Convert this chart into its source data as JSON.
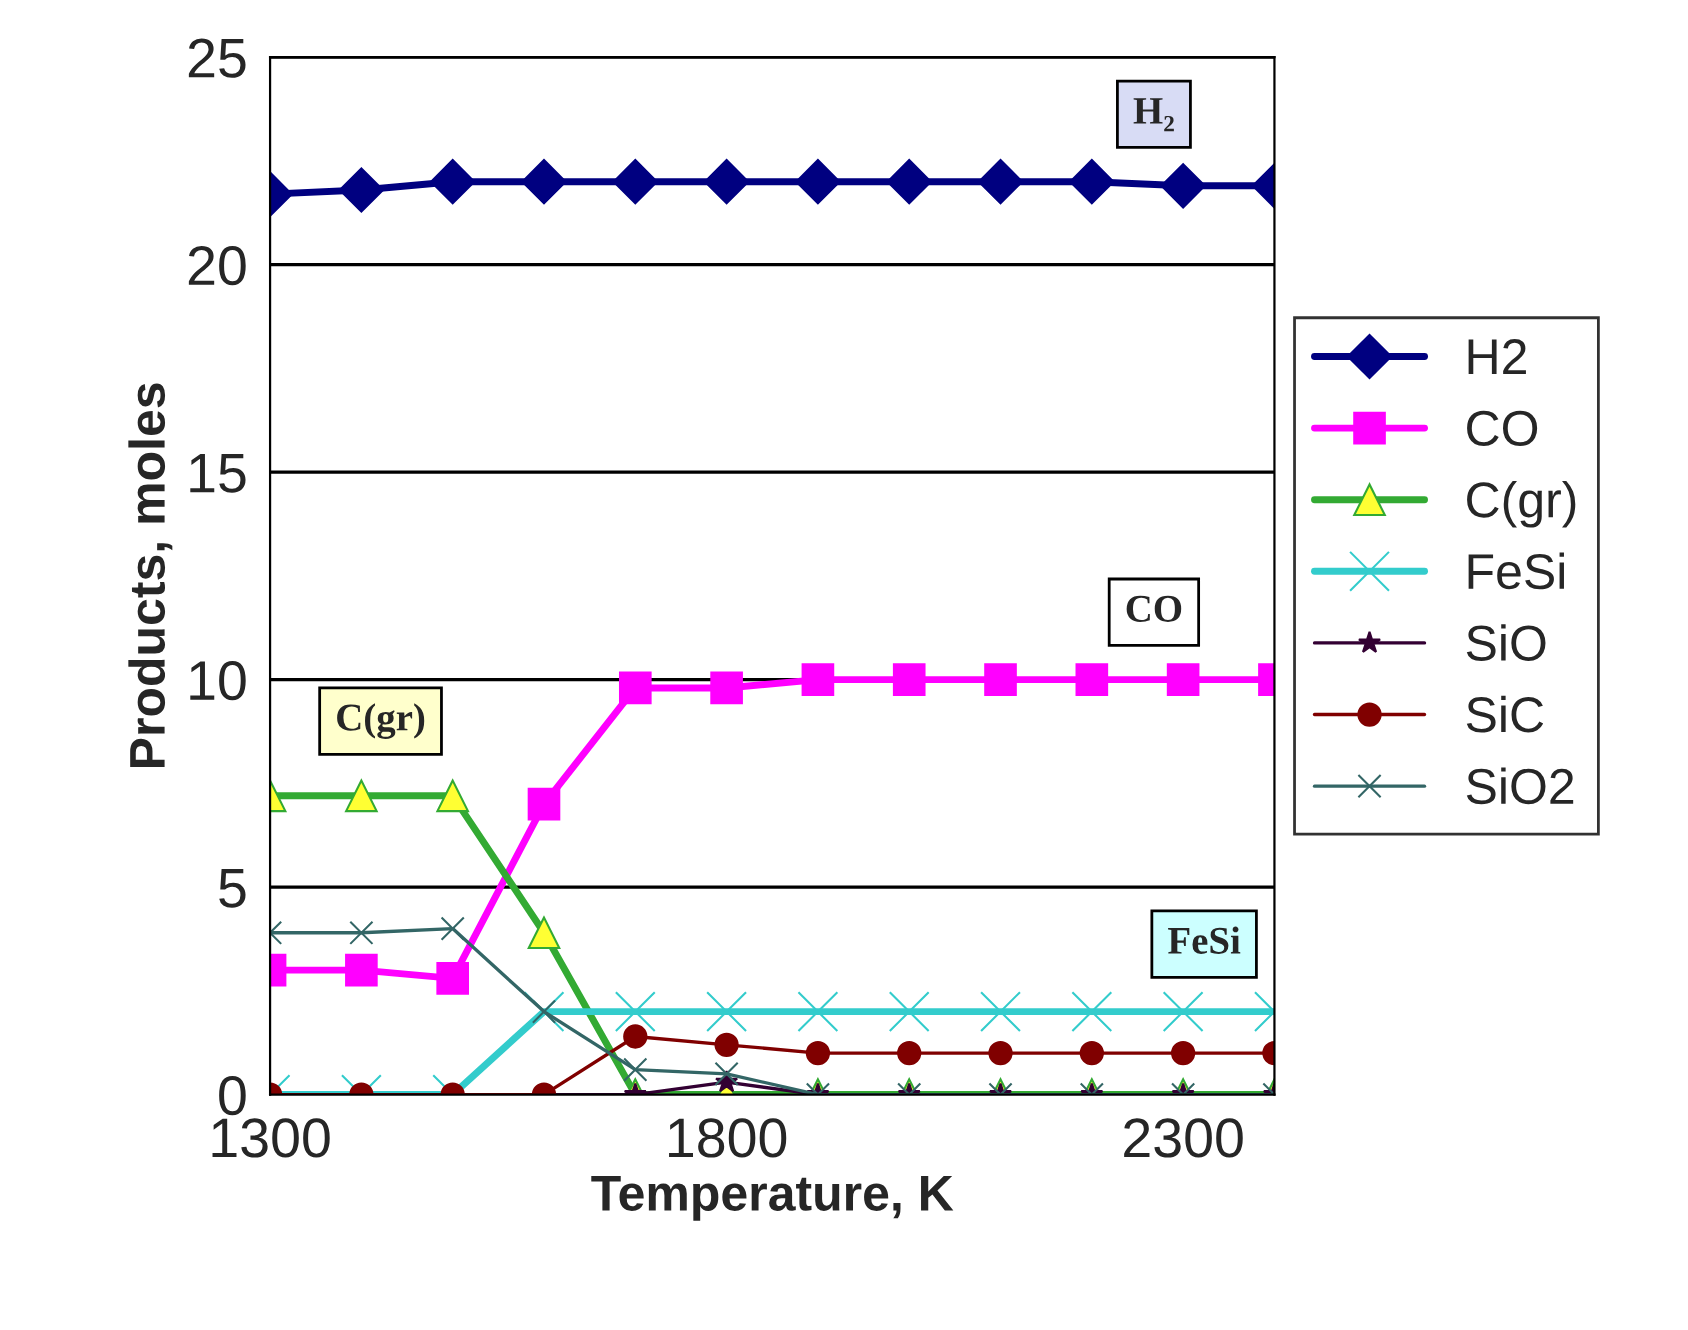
{
  "chart_data": {
    "type": "line",
    "xlabel": "Temperature, K",
    "ylabel": "Products, moles",
    "x": [
      1300,
      1400,
      1500,
      1600,
      1700,
      1800,
      1900,
      2000,
      2100,
      2200,
      2300,
      2400
    ],
    "xlim": [
      1300,
      2400
    ],
    "xticks": [
      1300,
      1800,
      2300
    ],
    "ylim": [
      0,
      25
    ],
    "yticks": [
      0,
      5,
      10,
      15,
      20,
      25
    ],
    "grid": "y",
    "legend": "right",
    "series": [
      {
        "name": "H2",
        "color": "#000080",
        "marker": "diamond",
        "values": [
          21.7,
          21.8,
          22,
          22,
          22,
          22,
          22,
          22,
          22,
          22,
          21.9,
          21.9
        ]
      },
      {
        "name": "CO",
        "color": "#ff00ff",
        "marker": "square",
        "values": [
          3,
          3,
          2.8,
          7,
          9.8,
          9.8,
          10,
          10,
          10,
          10,
          10,
          10
        ]
      },
      {
        "name": "C(gr)",
        "color": "#33aa33",
        "marker": "triangle",
        "values": [
          7.2,
          7.2,
          7.2,
          3.9,
          0,
          0,
          0,
          0,
          0,
          0,
          0,
          0
        ]
      },
      {
        "name": "FeSi",
        "color": "#33cccc",
        "marker": "cross",
        "values": [
          0,
          0,
          0,
          2,
          2,
          2,
          2,
          2,
          2,
          2,
          2,
          2
        ]
      },
      {
        "name": "SiO",
        "color": "#330033",
        "marker": "star",
        "values": [
          0,
          0,
          0,
          0,
          0,
          0.3,
          0,
          0,
          0,
          0,
          0,
          0
        ]
      },
      {
        "name": "SiC",
        "color": "#800000",
        "marker": "circle",
        "values": [
          0,
          0,
          0,
          0,
          1.4,
          1.2,
          1,
          1,
          1,
          1,
          1,
          1
        ]
      },
      {
        "name": "SiO2",
        "color": "#336666",
        "marker": "cross",
        "values": [
          3.9,
          3.9,
          4,
          2,
          0.6,
          0.5,
          0,
          0,
          0,
          0,
          0,
          0
        ]
      }
    ],
    "annotations": [
      "H₂",
      "CO",
      "C(gr)",
      "FeSi"
    ]
  }
}
